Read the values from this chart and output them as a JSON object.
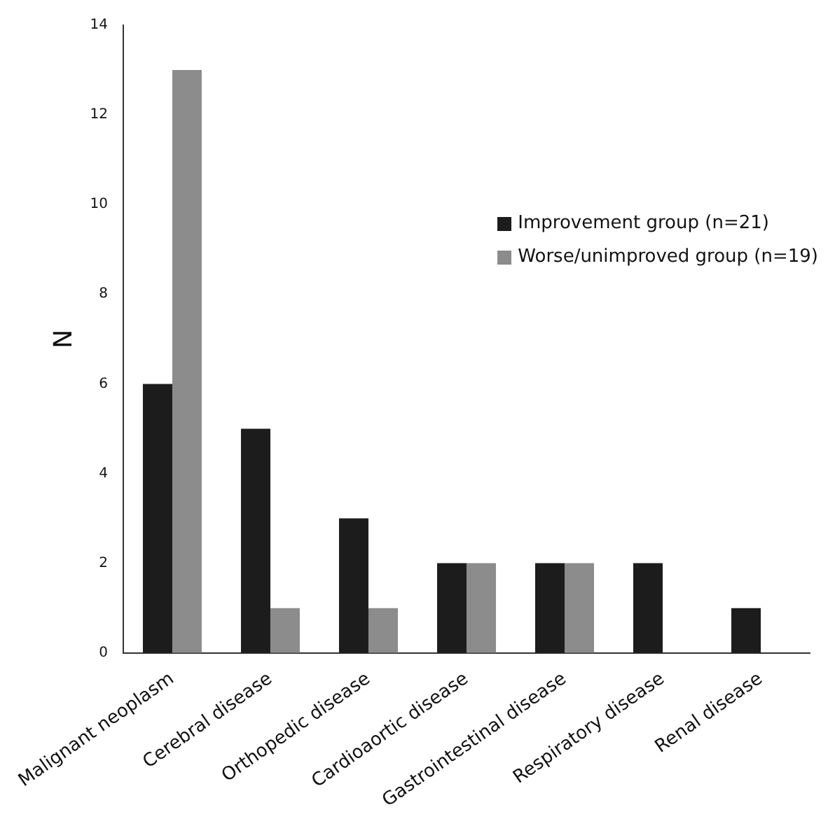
{
  "chart_data": {
    "type": "bar",
    "ylabel": "N",
    "categories": [
      "Malignant neoplasm",
      "Cerebral disease",
      "Orthopedic disease",
      "Cardioaortic disease",
      "Gastrointestinal disease",
      "Respiratory disease",
      "Renal disease"
    ],
    "series": [
      {
        "name": "Improvement group (n=21)",
        "color": "#1c1c1c",
        "values": [
          6,
          5,
          3,
          2,
          2,
          2,
          1
        ]
      },
      {
        "name": "Worse/unimproved group (n=19)",
        "color": "#8c8c8c",
        "values": [
          13,
          1,
          1,
          2,
          2,
          0,
          0
        ]
      }
    ],
    "ylim": [
      0,
      14
    ],
    "yticks": [
      0,
      2,
      4,
      6,
      8,
      10,
      12,
      14
    ],
    "grid": false,
    "legend": "right"
  }
}
